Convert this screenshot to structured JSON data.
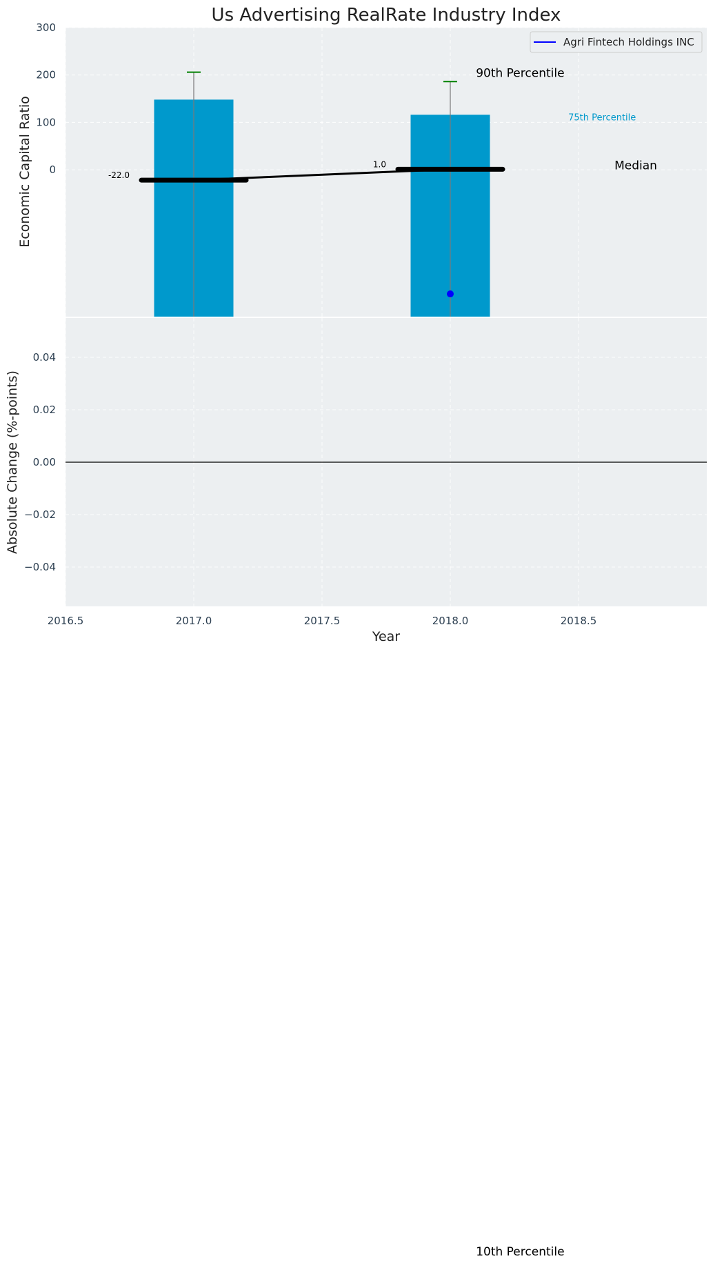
{
  "chart_data": [
    {
      "type": "bar",
      "title": "Us Advertising RealRate Industry Index",
      "ylabel": "Economic Capital Ratio",
      "xlabel": "",
      "xlim": [
        2016.5,
        2019.0
      ],
      "ylim": [
        -310,
        300
      ],
      "yticks": [
        0,
        100,
        200,
        300
      ],
      "grid": true,
      "legend": {
        "position": "top-right",
        "entries": [
          {
            "label": "Agri Fintech Holdings INC",
            "color": "#0000ff"
          }
        ]
      },
      "bars": [
        {
          "x": 2017.0,
          "value": 148,
          "bottom": -310,
          "color": "#0099cc"
        },
        {
          "x": 2018.0,
          "value": 116,
          "bottom": -310,
          "color": "#0099cc"
        }
      ],
      "whiskers": [
        {
          "x": 2017.0,
          "low": -310,
          "high": 206,
          "cap_color": "#008000"
        },
        {
          "x": 2018.0,
          "low": -310,
          "high": 186,
          "cap_color": "#008000"
        }
      ],
      "median_series": {
        "x": [
          2017.0,
          2018.0
        ],
        "values": [
          -22,
          1
        ],
        "labels": [
          "-22.0",
          "1.0"
        ],
        "color": "#000000"
      },
      "company_points": [
        {
          "x": 2018.0,
          "value": -262,
          "color": "#0000ff"
        }
      ],
      "annotations": [
        {
          "text": "90th Percentile",
          "x": 2018.1,
          "y": 196,
          "color": "#000000"
        },
        {
          "text": "75th Percentile",
          "x": 2018.46,
          "y": 104,
          "color": "#0099cc"
        },
        {
          "text": "Median",
          "x": 2018.64,
          "y": 1,
          "color": "#000000"
        },
        {
          "text": "10th Percentile",
          "x": 2018.1,
          "y": -2440,
          "color": "#000000"
        }
      ],
      "colors": {
        "plot_background": "#eceff1",
        "bar": "#0099cc",
        "median": "#000000",
        "company": "#0000ff",
        "whisker_cap": "#008000"
      }
    },
    {
      "type": "line",
      "title": "",
      "ylabel": "Absolute Change (%-points)",
      "xlabel": "Year",
      "xlim": [
        2016.5,
        2019.0
      ],
      "ylim": [
        -0.055,
        0.055
      ],
      "xticks": [
        2016.5,
        2017.0,
        2017.5,
        2018.0,
        2018.5
      ],
      "xtick_labels": [
        "2016.5",
        "2017.0",
        "2017.5",
        "2018.0",
        "2018.5"
      ],
      "yticks": [
        -0.04,
        -0.02,
        0.0,
        0.02,
        0.04
      ],
      "ytick_labels": [
        "−0.04",
        "−0.02",
        "0.00",
        "0.02",
        "0.04"
      ],
      "reference_line": 0.0,
      "grid": true,
      "series": []
    }
  ]
}
